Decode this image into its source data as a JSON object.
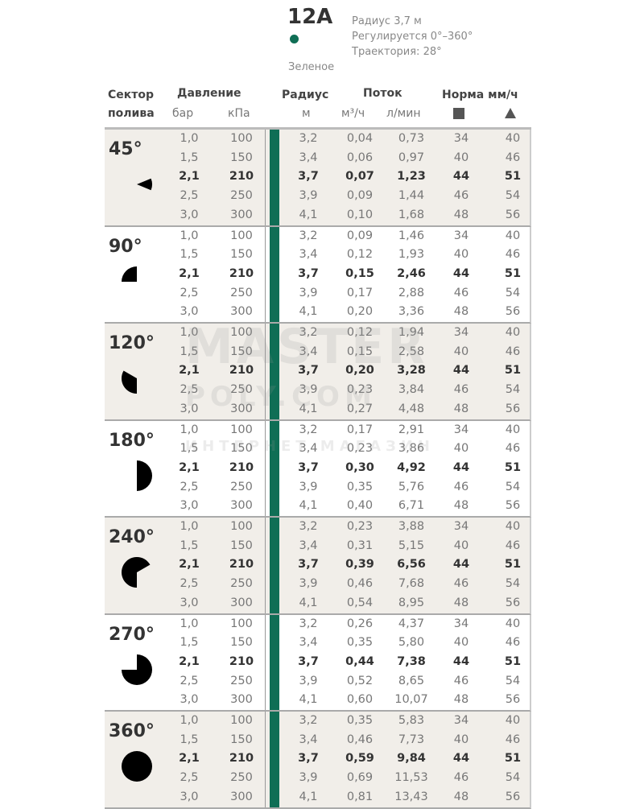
{
  "product": {
    "model": "12A",
    "color_name": "Зеленое",
    "color_hex": "#0f6e55",
    "specs": [
      "Радиус 3,7 м",
      "Регулируется 0°–360°",
      "Траектория: 28°"
    ]
  },
  "headers": {
    "sector_1": "Сектор",
    "sector_2": "полива",
    "pressure": "Давление",
    "bar": "бар",
    "kpa": "кПа",
    "radius": "Радиус",
    "radius_unit": "м",
    "flow": "Поток",
    "flow_m3": "м³/ч",
    "flow_lmin": "л/мин",
    "rate": "Норма мм/ч",
    "square_icon": "square-icon",
    "triangle_icon": "triangle-icon"
  },
  "watermark": [
    "MASTER",
    "POLY.COM",
    "ИНТЕРНЕТ МАГАЗИН"
  ],
  "groups": [
    {
      "sector": "45°",
      "angle": 45,
      "rows": [
        [
          "1,0",
          "100",
          "3,2",
          "0,04",
          "0,73",
          "34",
          "40"
        ],
        [
          "1,5",
          "150",
          "3,4",
          "0,06",
          "0,97",
          "40",
          "46"
        ],
        [
          "2,1",
          "210",
          "3,7",
          "0,07",
          "1,23",
          "44",
          "51"
        ],
        [
          "2,5",
          "250",
          "3,9",
          "0,09",
          "1,44",
          "46",
          "54"
        ],
        [
          "3,0",
          "300",
          "4,1",
          "0,10",
          "1,68",
          "48",
          "56"
        ]
      ]
    },
    {
      "sector": "90°",
      "angle": 90,
      "rows": [
        [
          "1,0",
          "100",
          "3,2",
          "0,09",
          "1,46",
          "34",
          "40"
        ],
        [
          "1,5",
          "150",
          "3,4",
          "0,12",
          "1,93",
          "40",
          "46"
        ],
        [
          "2,1",
          "210",
          "3,7",
          "0,15",
          "2,46",
          "44",
          "51"
        ],
        [
          "2,5",
          "250",
          "3,9",
          "0,17",
          "2,88",
          "46",
          "54"
        ],
        [
          "3,0",
          "300",
          "4,1",
          "0,20",
          "3,36",
          "48",
          "56"
        ]
      ]
    },
    {
      "sector": "120°",
      "angle": 120,
      "rows": [
        [
          "1,0",
          "100",
          "3,2",
          "0,12",
          "1,94",
          "34",
          "40"
        ],
        [
          "1,5",
          "150",
          "3,4",
          "0,15",
          "2,58",
          "40",
          "46"
        ],
        [
          "2,1",
          "210",
          "3,7",
          "0,20",
          "3,28",
          "44",
          "51"
        ],
        [
          "2,5",
          "250",
          "3,9",
          "0,23",
          "3,84",
          "46",
          "54"
        ],
        [
          "3,0",
          "300",
          "4,1",
          "0,27",
          "4,48",
          "48",
          "56"
        ]
      ]
    },
    {
      "sector": "180°",
      "angle": 180,
      "rows": [
        [
          "1,0",
          "100",
          "3,2",
          "0,17",
          "2,91",
          "34",
          "40"
        ],
        [
          "1,5",
          "150",
          "3,4",
          "0,23",
          "3,86",
          "40",
          "46"
        ],
        [
          "2,1",
          "210",
          "3,7",
          "0,30",
          "4,92",
          "44",
          "51"
        ],
        [
          "2,5",
          "250",
          "3,9",
          "0,35",
          "5,76",
          "46",
          "54"
        ],
        [
          "3,0",
          "300",
          "4,1",
          "0,40",
          "6,71",
          "48",
          "56"
        ]
      ]
    },
    {
      "sector": "240°",
      "angle": 240,
      "rows": [
        [
          "1,0",
          "100",
          "3,2",
          "0,23",
          "3,88",
          "34",
          "40"
        ],
        [
          "1,5",
          "150",
          "3,4",
          "0,31",
          "5,15",
          "40",
          "46"
        ],
        [
          "2,1",
          "210",
          "3,7",
          "0,39",
          "6,56",
          "44",
          "51"
        ],
        [
          "2,5",
          "250",
          "3,9",
          "0,46",
          "7,68",
          "46",
          "54"
        ],
        [
          "3,0",
          "300",
          "4,1",
          "0,54",
          "8,95",
          "48",
          "56"
        ]
      ]
    },
    {
      "sector": "270°",
      "angle": 270,
      "rows": [
        [
          "1,0",
          "100",
          "3,2",
          "0,26",
          "4,37",
          "34",
          "40"
        ],
        [
          "1,5",
          "150",
          "3,4",
          "0,35",
          "5,80",
          "40",
          "46"
        ],
        [
          "2,1",
          "210",
          "3,7",
          "0,44",
          "7,38",
          "44",
          "51"
        ],
        [
          "2,5",
          "250",
          "3,9",
          "0,52",
          "8,65",
          "46",
          "54"
        ],
        [
          "3,0",
          "300",
          "4,1",
          "0,60",
          "10,07",
          "48",
          "56"
        ]
      ]
    },
    {
      "sector": "360°",
      "angle": 360,
      "rows": [
        [
          "1,0",
          "100",
          "3,2",
          "0,35",
          "5,83",
          "34",
          "40"
        ],
        [
          "1,5",
          "150",
          "3,4",
          "0,46",
          "7,73",
          "40",
          "46"
        ],
        [
          "2,1",
          "210",
          "3,7",
          "0,59",
          "9,84",
          "44",
          "51"
        ],
        [
          "2,5",
          "250",
          "3,9",
          "0,69",
          "11,53",
          "46",
          "54"
        ],
        [
          "3,0",
          "300",
          "4,1",
          "0,81",
          "13,43",
          "48",
          "56"
        ]
      ]
    }
  ]
}
